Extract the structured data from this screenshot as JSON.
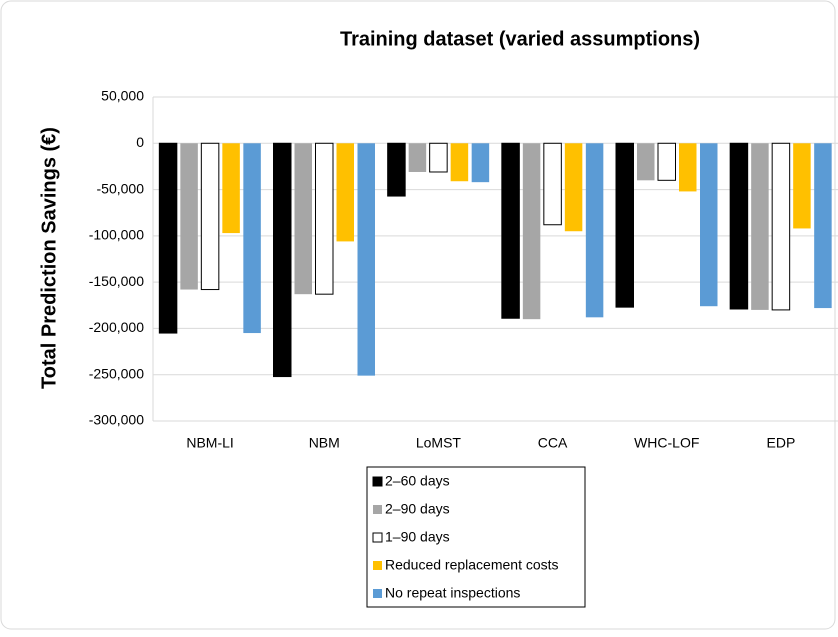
{
  "chart_data": {
    "type": "bar",
    "title": "Training dataset (varied assumptions)",
    "y_label": "Total Prediction Savings (€)",
    "categories": [
      "NBM-LI",
      "NBM",
      "LoMST",
      "CCA",
      "WHC-LOF",
      "EDP"
    ],
    "series": [
      {
        "name": "2–60 days",
        "color": "#000000",
        "values": [
          -205000,
          -252000,
          -57000,
          -189000,
          -177000,
          -179000
        ]
      },
      {
        "name": "2–90 days",
        "color": "#a6a6a6",
        "values": [
          -158000,
          -163000,
          -31000,
          -190000,
          -40000,
          -180000
        ]
      },
      {
        "name": "1–90 days",
        "color": "#ffffff",
        "values": [
          -158000,
          -163000,
          -31000,
          -88000,
          -40000,
          -180000
        ]
      },
      {
        "name": "Reduced replacement costs",
        "color": "#ffc000",
        "values": [
          -97000,
          -106000,
          -41000,
          -95000,
          -52000,
          -92000
        ]
      },
      {
        "name": "No repeat inspections",
        "color": "#5b9bd5",
        "values": [
          -205000,
          -251000,
          -42000,
          -188000,
          -176000,
          -178000
        ]
      }
    ],
    "ylim": [
      -300000,
      50000
    ],
    "yticks": [
      {
        "value": -300000,
        "label": "-300,000"
      },
      {
        "value": -250000,
        "label": "-250,000"
      },
      {
        "value": -200000,
        "label": "-200,000"
      },
      {
        "value": -150000,
        "label": "-150,000"
      },
      {
        "value": -100000,
        "label": "-100,000"
      },
      {
        "value": -50000,
        "label": "-50,000"
      },
      0,
      {
        "value": 50000,
        "label": "50,000"
      }
    ],
    "grid": true
  }
}
